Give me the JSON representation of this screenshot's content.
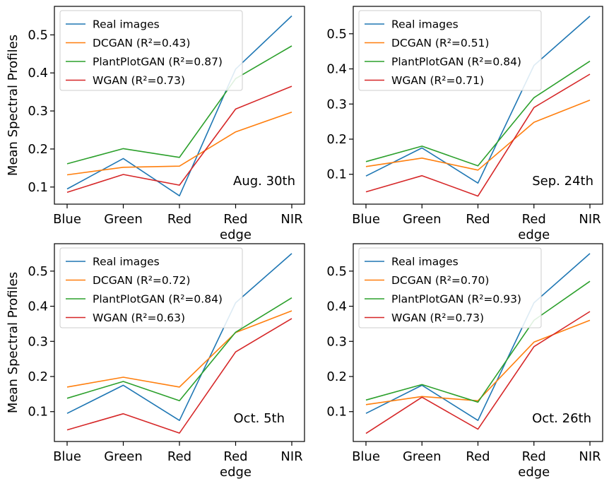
{
  "chart_data": [
    {
      "type": "line",
      "annotation": "Aug. 30th",
      "ylabel": "Mean Spectral Profiles",
      "categories": [
        "Blue",
        "Green",
        "Red",
        "Red\nedge",
        "NIR"
      ],
      "ylim": [
        0.055,
        0.575
      ],
      "yticks": [
        0.1,
        0.2,
        0.3,
        0.4,
        0.5
      ],
      "series": [
        {
          "name": "Real images",
          "color": "#1f77b4",
          "values": [
            0.095,
            0.175,
            0.077,
            0.41,
            0.55
          ]
        },
        {
          "name": "DCGAN (R²=0.43)",
          "color": "#ff7f0e",
          "values": [
            0.132,
            0.152,
            0.155,
            0.245,
            0.297
          ]
        },
        {
          "name": "PlantPlotGAN (R²=0.87)",
          "color": "#2ca02c",
          "values": [
            0.161,
            0.201,
            0.178,
            0.385,
            0.471
          ]
        },
        {
          "name": "WGAN (R²=0.73)",
          "color": "#d62728",
          "values": [
            0.086,
            0.133,
            0.105,
            0.305,
            0.365
          ]
        }
      ]
    },
    {
      "type": "line",
      "annotation": "Sep. 24th",
      "ylabel": "",
      "categories": [
        "Blue",
        "Green",
        "Red",
        "Red\nedge",
        "NIR"
      ],
      "ylim": [
        0.015,
        0.578
      ],
      "yticks": [
        0.1,
        0.2,
        0.3,
        0.4,
        0.5
      ],
      "series": [
        {
          "name": "Real images",
          "color": "#1f77b4",
          "values": [
            0.095,
            0.175,
            0.075,
            0.41,
            0.55
          ]
        },
        {
          "name": "DCGAN (R²=0.51)",
          "color": "#ff7f0e",
          "values": [
            0.122,
            0.146,
            0.112,
            0.248,
            0.311
          ]
        },
        {
          "name": "PlantPlotGAN (R²=0.84)",
          "color": "#2ca02c",
          "values": [
            0.136,
            0.18,
            0.124,
            0.318,
            0.422
          ]
        },
        {
          "name": "WGAN (R²=0.71)",
          "color": "#d62728",
          "values": [
            0.05,
            0.096,
            0.038,
            0.29,
            0.385
          ]
        }
      ]
    },
    {
      "type": "line",
      "annotation": "Oct. 5th",
      "ylabel": "Mean Spectral Profiles",
      "categories": [
        "Blue",
        "Green",
        "Red",
        "Red\nedge",
        "NIR"
      ],
      "ylim": [
        0.015,
        0.578
      ],
      "yticks": [
        0.1,
        0.2,
        0.3,
        0.4,
        0.5
      ],
      "series": [
        {
          "name": "Real images",
          "color": "#1f77b4",
          "values": [
            0.095,
            0.175,
            0.075,
            0.41,
            0.55
          ]
        },
        {
          "name": "DCGAN (R²=0.72)",
          "color": "#ff7f0e",
          "values": [
            0.17,
            0.198,
            0.17,
            0.325,
            0.387
          ]
        },
        {
          "name": "PlantPlotGAN (R²=0.84)",
          "color": "#2ca02c",
          "values": [
            0.138,
            0.186,
            0.131,
            0.326,
            0.424
          ]
        },
        {
          "name": "WGAN (R²=0.63)",
          "color": "#d62728",
          "values": [
            0.048,
            0.094,
            0.039,
            0.27,
            0.365
          ]
        }
      ]
    },
    {
      "type": "line",
      "annotation": "Oct. 26th",
      "ylabel": "",
      "categories": [
        "Blue",
        "Green",
        "Red",
        "Red\nedge",
        "NIR"
      ],
      "ylim": [
        0.015,
        0.578
      ],
      "yticks": [
        0.1,
        0.2,
        0.3,
        0.4,
        0.5
      ],
      "series": [
        {
          "name": "Real images",
          "color": "#1f77b4",
          "values": [
            0.095,
            0.175,
            0.075,
            0.41,
            0.55
          ]
        },
        {
          "name": "DCGAN (R²=0.70)",
          "color": "#ff7f0e",
          "values": [
            0.12,
            0.143,
            0.131,
            0.298,
            0.36
          ]
        },
        {
          "name": "PlantPlotGAN (R²=0.93)",
          "color": "#2ca02c",
          "values": [
            0.133,
            0.177,
            0.127,
            0.36,
            0.471
          ]
        },
        {
          "name": "WGAN (R²=0.73)",
          "color": "#d62728",
          "values": [
            0.038,
            0.141,
            0.05,
            0.285,
            0.385
          ]
        }
      ]
    }
  ]
}
